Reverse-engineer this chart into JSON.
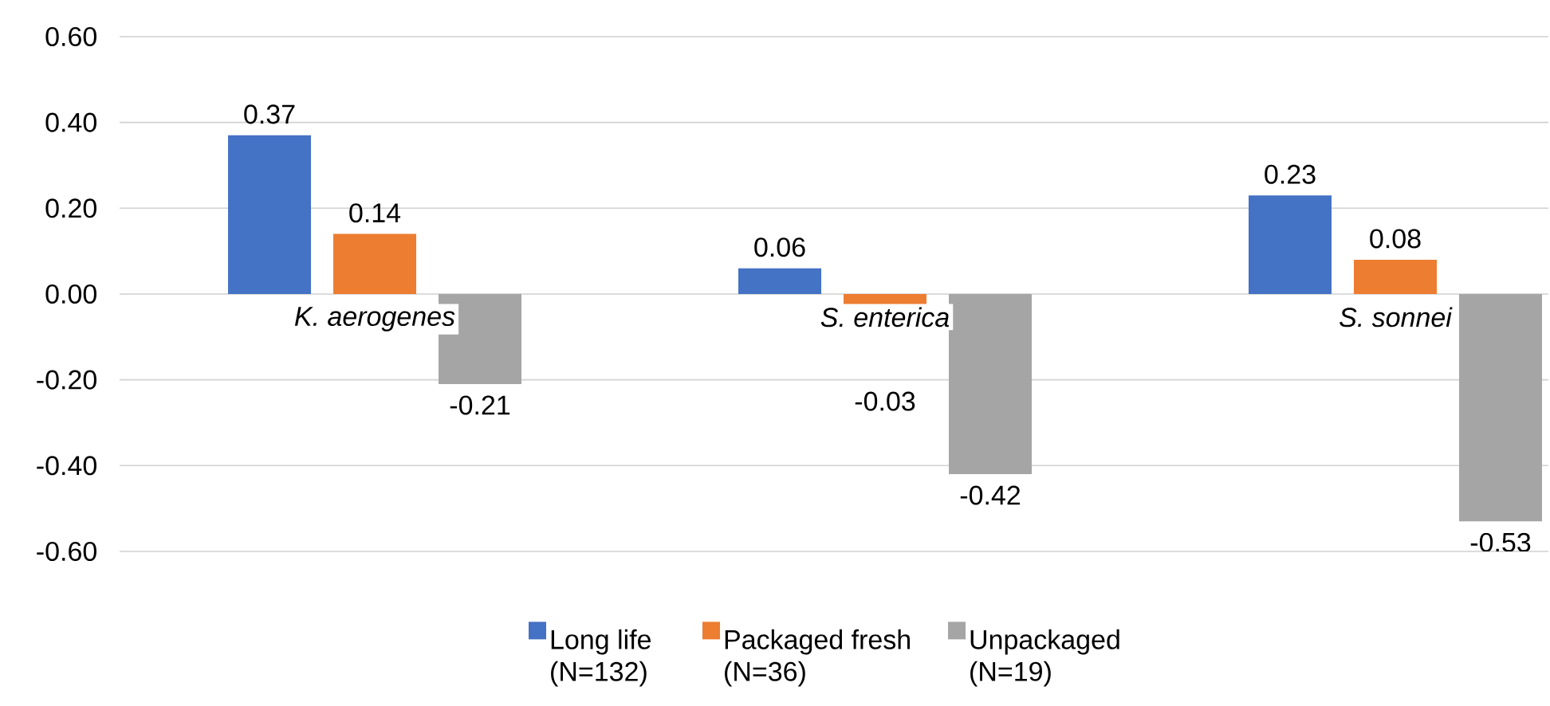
{
  "chart_data": {
    "type": "bar",
    "categories": [
      "K. aerogenes",
      "S. enterica",
      "S. sonnei"
    ],
    "series": [
      {
        "name": "Long life (N=132)",
        "color": "#4472c4",
        "values": [
          0.37,
          0.06,
          0.23
        ],
        "value_labels": [
          "0.37",
          "0.06",
          "0.23"
        ]
      },
      {
        "name": "Packaged fresh (N=36)",
        "color": "#ed7d31",
        "values": [
          0.14,
          -0.03,
          0.08
        ],
        "value_labels": [
          "0.14",
          "-0.03",
          "0.08"
        ]
      },
      {
        "name": "Unpackaged (N=19)",
        "color": "#a5a5a5",
        "values": [
          -0.21,
          -0.42,
          -0.53
        ],
        "value_labels": [
          "-0.21",
          "-0.42",
          "-0.53"
        ]
      }
    ],
    "ylim": [
      -0.6,
      0.6
    ],
    "yticks": [
      {
        "value": -0.6,
        "label": "-0.60"
      },
      {
        "value": -0.4,
        "label": "-0.40"
      },
      {
        "value": -0.2,
        "label": "-0.20"
      },
      {
        "value": 0,
        "label": "0.00"
      },
      {
        "value": 0.2,
        "label": "0.20"
      },
      {
        "value": 0.4,
        "label": "0.40"
      },
      {
        "value": 0.6,
        "label": "0.60"
      }
    ],
    "grid": "y",
    "legend": "bottom"
  }
}
